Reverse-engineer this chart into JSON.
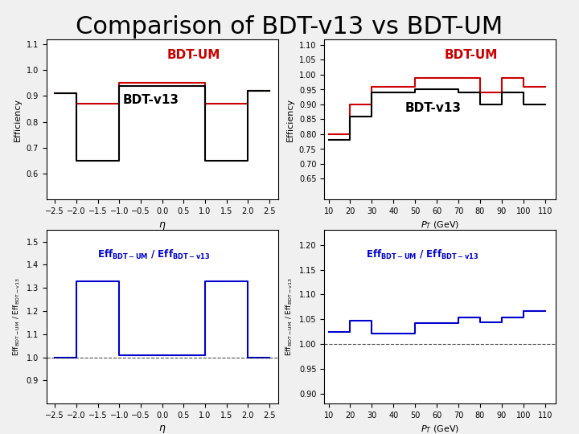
{
  "title": "Comparison of BDT-v13 vs BDT-UM",
  "title_fontsize": 22,
  "bg_color": "#f0f0f0",
  "eta_edges": [
    -2.5,
    -2.0,
    -1.5,
    -1.0,
    -0.5,
    0.0,
    0.5,
    1.0,
    1.5,
    2.0,
    2.5
  ],
  "bdt_v13_eta": [
    0.91,
    0.65,
    0.65,
    0.94,
    0.94,
    0.94,
    0.94,
    0.65,
    0.65,
    0.92
  ],
  "bdt_um_eta": [
    0.91,
    0.87,
    0.87,
    0.95,
    0.95,
    0.95,
    0.95,
    0.87,
    0.87,
    0.92
  ],
  "pt_edges": [
    10,
    20,
    30,
    40,
    50,
    60,
    70,
    80,
    90,
    100,
    110
  ],
  "bdt_v13_pt": [
    0.78,
    0.86,
    0.94,
    0.94,
    0.95,
    0.95,
    0.94,
    0.9,
    0.94,
    0.9
  ],
  "bdt_um_pt": [
    0.8,
    0.9,
    0.96,
    0.96,
    0.99,
    0.99,
    0.99,
    0.94,
    0.99,
    0.96
  ],
  "ratio_eta_edges": [
    -2.5,
    -2.0,
    -1.5,
    -1.0,
    -0.5,
    0.0,
    0.5,
    1.0,
    1.5,
    2.0,
    2.5
  ],
  "ratio_eta": [
    1.0,
    1.33,
    1.33,
    1.01,
    1.01,
    1.01,
    1.01,
    1.33,
    1.33,
    1.0
  ],
  "ratio_pt_edges": [
    10,
    20,
    30,
    40,
    50,
    60,
    70,
    80,
    90,
    100,
    110
  ],
  "ratio_pt": [
    1.025,
    1.047,
    1.021,
    1.021,
    1.042,
    1.042,
    1.053,
    1.044,
    1.053,
    1.067
  ],
  "color_um": "#cc0000",
  "color_v13": "#000000",
  "color_ratio": "#0000cc",
  "eta_xlim": [
    -2.7,
    2.7
  ],
  "eta_ylim_eff": [
    0.5,
    1.12
  ],
  "eta_ylim_ratio": [
    0.8,
    1.55
  ],
  "eta_yticks_eff": [
    0.6,
    0.7,
    0.8,
    0.9,
    1.0,
    1.1
  ],
  "eta_yticks_ratio": [
    0.9,
    1.0,
    1.1,
    1.2,
    1.3,
    1.4,
    1.5
  ],
  "eta_xticks": [
    -2.5,
    -2.0,
    -1.5,
    -1.0,
    -0.5,
    0.0,
    0.5,
    1.0,
    1.5,
    2.0,
    2.5
  ],
  "pt_xlim": [
    8,
    115
  ],
  "pt_ylim_eff": [
    0.58,
    1.12
  ],
  "pt_ylim_ratio": [
    0.88,
    1.23
  ],
  "pt_yticks_eff": [
    0.65,
    0.7,
    0.75,
    0.8,
    0.85,
    0.9,
    0.95,
    1.0,
    1.05,
    1.1
  ],
  "pt_yticks_ratio": [
    0.9,
    0.95,
    1.0,
    1.05,
    1.1,
    1.15,
    1.2
  ],
  "pt_xticks": [
    10,
    20,
    30,
    40,
    50,
    60,
    70,
    80,
    90,
    100,
    110
  ]
}
